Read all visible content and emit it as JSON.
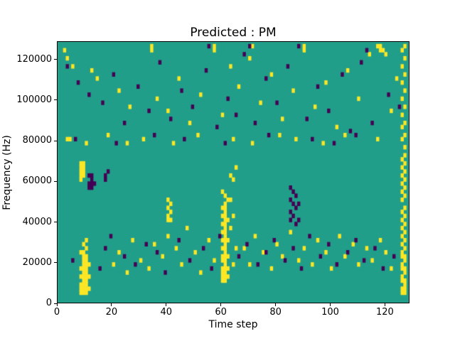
{
  "chart_data": {
    "type": "heatmap",
    "title": "Predicted : PM",
    "xlabel": "Time step",
    "ylabel": "Frequency (Hz)",
    "xlim": [
      0,
      129
    ],
    "ylim": [
      0,
      129000
    ],
    "x_ticks": [
      0,
      20,
      40,
      60,
      80,
      100,
      120
    ],
    "y_ticks": [
      0,
      20000,
      40000,
      60000,
      80000,
      100000,
      120000
    ],
    "grid": false,
    "legend": "none",
    "cell": {
      "width_steps": 1,
      "height_hz": 2000
    },
    "colors": {
      "background": "#219e89",
      "high": "#fde725",
      "low": "#440154"
    },
    "value_legend": {
      "background": "mid/none",
      "high": "yellow cells",
      "low": "dark purple cells"
    },
    "yellow_cells": [
      [
        8,
        2
      ],
      [
        9,
        2
      ],
      [
        10,
        2
      ],
      [
        8,
        3
      ],
      [
        9,
        3
      ],
      [
        10,
        3
      ],
      [
        11,
        3
      ],
      [
        8,
        4
      ],
      [
        9,
        4
      ],
      [
        10,
        4
      ],
      [
        9,
        5
      ],
      [
        10,
        5
      ],
      [
        8,
        6
      ],
      [
        9,
        6
      ],
      [
        10,
        6
      ],
      [
        11,
        6
      ],
      [
        9,
        7
      ],
      [
        10,
        7
      ],
      [
        8,
        8
      ],
      [
        9,
        8
      ],
      [
        10,
        8
      ],
      [
        9,
        9
      ],
      [
        10,
        9
      ],
      [
        11,
        9
      ],
      [
        9,
        10
      ],
      [
        10,
        10
      ],
      [
        9,
        11
      ],
      [
        10,
        11
      ],
      [
        8,
        12
      ],
      [
        9,
        12
      ],
      [
        10,
        13
      ],
      [
        9,
        14
      ],
      [
        10,
        15
      ],
      [
        8,
        30
      ],
      [
        8,
        31
      ],
      [
        9,
        31
      ],
      [
        8,
        32
      ],
      [
        9,
        32
      ],
      [
        8,
        33
      ],
      [
        9,
        33
      ],
      [
        8,
        34
      ],
      [
        9,
        34
      ],
      [
        60,
        5
      ],
      [
        61,
        5
      ],
      [
        60,
        6
      ],
      [
        61,
        6
      ],
      [
        62,
        6
      ],
      [
        60,
        7
      ],
      [
        61,
        7
      ],
      [
        60,
        8
      ],
      [
        61,
        8
      ],
      [
        62,
        8
      ],
      [
        61,
        9
      ],
      [
        60,
        10
      ],
      [
        61,
        10
      ],
      [
        60,
        11
      ],
      [
        61,
        11
      ],
      [
        62,
        11
      ],
      [
        61,
        12
      ],
      [
        60,
        13
      ],
      [
        61,
        13
      ],
      [
        61,
        14
      ],
      [
        60,
        15
      ],
      [
        61,
        15
      ],
      [
        62,
        15
      ],
      [
        61,
        16
      ],
      [
        60,
        17
      ],
      [
        61,
        17
      ],
      [
        61,
        18
      ],
      [
        60,
        19
      ],
      [
        61,
        19
      ],
      [
        61,
        20
      ],
      [
        62,
        20
      ],
      [
        60,
        21
      ],
      [
        61,
        21
      ],
      [
        61,
        22
      ],
      [
        60,
        23
      ],
      [
        61,
        23
      ],
      [
        61,
        24
      ],
      [
        62,
        25
      ],
      [
        61,
        26
      ],
      [
        60,
        27
      ],
      [
        64,
        9
      ],
      [
        65,
        13
      ],
      [
        63,
        18
      ],
      [
        64,
        21
      ],
      [
        63,
        25
      ],
      [
        64,
        30
      ],
      [
        63,
        31
      ],
      [
        65,
        33
      ],
      [
        126,
        2
      ],
      [
        127,
        2
      ],
      [
        126,
        3
      ],
      [
        127,
        3
      ],
      [
        127,
        4
      ],
      [
        126,
        5
      ],
      [
        127,
        5
      ],
      [
        126,
        6
      ],
      [
        127,
        7
      ],
      [
        126,
        8
      ],
      [
        127,
        8
      ],
      [
        126,
        9
      ],
      [
        127,
        10
      ],
      [
        126,
        11
      ],
      [
        127,
        11
      ],
      [
        126,
        12
      ],
      [
        127,
        13
      ],
      [
        126,
        14
      ],
      [
        127,
        15
      ],
      [
        126,
        16
      ],
      [
        127,
        17
      ],
      [
        126,
        18
      ],
      [
        127,
        19
      ],
      [
        126,
        20
      ],
      [
        127,
        21
      ],
      [
        126,
        22
      ],
      [
        127,
        23
      ],
      [
        126,
        25
      ],
      [
        127,
        26
      ],
      [
        126,
        27
      ],
      [
        127,
        28
      ],
      [
        126,
        29
      ],
      [
        127,
        30
      ],
      [
        126,
        31
      ],
      [
        127,
        32
      ],
      [
        126,
        33
      ],
      [
        127,
        34
      ],
      [
        126,
        35
      ],
      [
        127,
        36
      ],
      [
        127,
        38
      ],
      [
        126,
        40
      ],
      [
        127,
        41
      ],
      [
        126,
        43
      ],
      [
        127,
        44
      ],
      [
        126,
        46
      ],
      [
        127,
        48
      ],
      [
        126,
        50
      ],
      [
        127,
        52
      ],
      [
        126,
        54
      ],
      [
        127,
        56
      ],
      [
        126,
        58
      ],
      [
        127,
        60
      ],
      [
        126,
        62
      ],
      [
        127,
        63
      ],
      [
        20,
        9
      ],
      [
        22,
        12
      ],
      [
        25,
        7
      ],
      [
        27,
        15
      ],
      [
        30,
        10
      ],
      [
        33,
        8
      ],
      [
        35,
        14
      ],
      [
        38,
        11
      ],
      [
        40,
        16
      ],
      [
        41,
        20
      ],
      [
        43,
        13
      ],
      [
        45,
        9
      ],
      [
        47,
        18
      ],
      [
        50,
        12
      ],
      [
        52,
        7
      ],
      [
        55,
        15
      ],
      [
        57,
        10
      ],
      [
        68,
        13
      ],
      [
        70,
        9
      ],
      [
        72,
        16
      ],
      [
        75,
        12
      ],
      [
        78,
        8
      ],
      [
        80,
        14
      ],
      [
        82,
        11
      ],
      [
        85,
        17
      ],
      [
        88,
        10
      ],
      [
        90,
        13
      ],
      [
        93,
        9
      ],
      [
        95,
        15
      ],
      [
        98,
        12
      ],
      [
        100,
        8
      ],
      [
        103,
        16
      ],
      [
        105,
        11
      ],
      [
        108,
        14
      ],
      [
        110,
        9
      ],
      [
        113,
        13
      ],
      [
        115,
        10
      ],
      [
        118,
        15
      ],
      [
        120,
        12
      ],
      [
        122,
        8
      ],
      [
        40,
        20
      ],
      [
        40,
        21
      ],
      [
        41,
        22
      ],
      [
        40,
        23
      ],
      [
        41,
        24
      ],
      [
        40,
        25
      ],
      [
        3,
        40
      ],
      [
        4,
        40
      ],
      [
        10,
        39
      ],
      [
        18,
        41
      ],
      [
        25,
        39
      ],
      [
        31,
        40
      ],
      [
        42,
        39
      ],
      [
        51,
        41
      ],
      [
        64,
        40
      ],
      [
        71,
        39
      ],
      [
        81,
        41
      ],
      [
        87,
        40
      ],
      [
        97,
        39
      ],
      [
        105,
        41
      ],
      [
        117,
        40
      ],
      [
        2,
        62
      ],
      [
        3,
        60
      ],
      [
        5,
        58
      ],
      [
        12,
        57
      ],
      [
        14,
        55
      ],
      [
        22,
        52
      ],
      [
        26,
        48
      ],
      [
        34,
        62
      ],
      [
        36,
        50
      ],
      [
        40,
        47
      ],
      [
        44,
        55
      ],
      [
        48,
        44
      ],
      [
        52,
        51
      ],
      [
        57,
        62
      ],
      [
        60,
        46
      ],
      [
        63,
        58
      ],
      [
        66,
        53
      ],
      [
        70,
        60
      ],
      [
        74,
        49
      ],
      [
        78,
        56
      ],
      [
        82,
        45
      ],
      [
        86,
        52
      ],
      [
        90,
        62
      ],
      [
        94,
        48
      ],
      [
        98,
        54
      ],
      [
        102,
        43
      ],
      [
        106,
        57
      ],
      [
        110,
        50
      ],
      [
        114,
        61
      ],
      [
        118,
        62
      ],
      [
        119,
        62
      ],
      [
        120,
        61
      ],
      [
        122,
        47
      ],
      [
        124,
        55
      ],
      [
        34,
        63
      ],
      [
        57,
        63
      ],
      [
        71,
        63
      ],
      [
        90,
        63
      ],
      [
        117,
        63
      ],
      [
        118,
        63
      ]
    ],
    "purple_cells": [
      [
        5,
        10
      ],
      [
        15,
        8
      ],
      [
        17,
        13
      ],
      [
        19,
        16
      ],
      [
        24,
        11
      ],
      [
        28,
        9
      ],
      [
        32,
        14
      ],
      [
        36,
        12
      ],
      [
        39,
        7
      ],
      [
        44,
        15
      ],
      [
        48,
        10
      ],
      [
        53,
        13
      ],
      [
        56,
        8
      ],
      [
        59,
        16
      ],
      [
        66,
        11
      ],
      [
        69,
        14
      ],
      [
        73,
        9
      ],
      [
        76,
        12
      ],
      [
        79,
        15
      ],
      [
        83,
        10
      ],
      [
        86,
        13
      ],
      [
        89,
        8
      ],
      [
        92,
        16
      ],
      [
        96,
        11
      ],
      [
        99,
        14
      ],
      [
        102,
        9
      ],
      [
        106,
        12
      ],
      [
        109,
        15
      ],
      [
        112,
        10
      ],
      [
        116,
        13
      ],
      [
        119,
        8
      ],
      [
        123,
        11
      ],
      [
        11,
        28
      ],
      [
        12,
        28
      ],
      [
        11,
        29
      ],
      [
        12,
        29
      ],
      [
        13,
        29
      ],
      [
        12,
        30
      ],
      [
        11,
        31
      ],
      [
        12,
        31
      ],
      [
        17,
        30
      ],
      [
        17,
        31
      ],
      [
        18,
        32
      ],
      [
        6,
        40
      ],
      [
        21,
        39
      ],
      [
        35,
        41
      ],
      [
        46,
        40
      ],
      [
        61,
        39
      ],
      [
        77,
        41
      ],
      [
        93,
        40
      ],
      [
        101,
        39
      ],
      [
        109,
        41
      ],
      [
        85,
        20
      ],
      [
        86,
        21
      ],
      [
        85,
        22
      ],
      [
        87,
        23
      ],
      [
        86,
        24
      ],
      [
        85,
        25
      ],
      [
        87,
        26
      ],
      [
        86,
        27
      ],
      [
        85,
        28
      ],
      [
        87,
        19
      ],
      [
        88,
        20
      ],
      [
        88,
        24
      ],
      [
        3,
        58
      ],
      [
        7,
        54
      ],
      [
        11,
        51
      ],
      [
        16,
        49
      ],
      [
        20,
        56
      ],
      [
        24,
        44
      ],
      [
        29,
        53
      ],
      [
        33,
        47
      ],
      [
        37,
        59
      ],
      [
        41,
        45
      ],
      [
        45,
        52
      ],
      [
        49,
        48
      ],
      [
        54,
        57
      ],
      [
        55,
        63
      ],
      [
        58,
        43
      ],
      [
        62,
        50
      ],
      [
        65,
        46
      ],
      [
        68,
        61
      ],
      [
        70,
        63
      ],
      [
        72,
        44
      ],
      [
        76,
        55
      ],
      [
        80,
        49
      ],
      [
        84,
        58
      ],
      [
        88,
        63
      ],
      [
        91,
        45
      ],
      [
        95,
        53
      ],
      [
        99,
        47
      ],
      [
        104,
        56
      ],
      [
        107,
        42
      ],
      [
        111,
        59
      ],
      [
        113,
        62
      ],
      [
        115,
        44
      ],
      [
        121,
        51
      ],
      [
        125,
        48
      ]
    ]
  }
}
